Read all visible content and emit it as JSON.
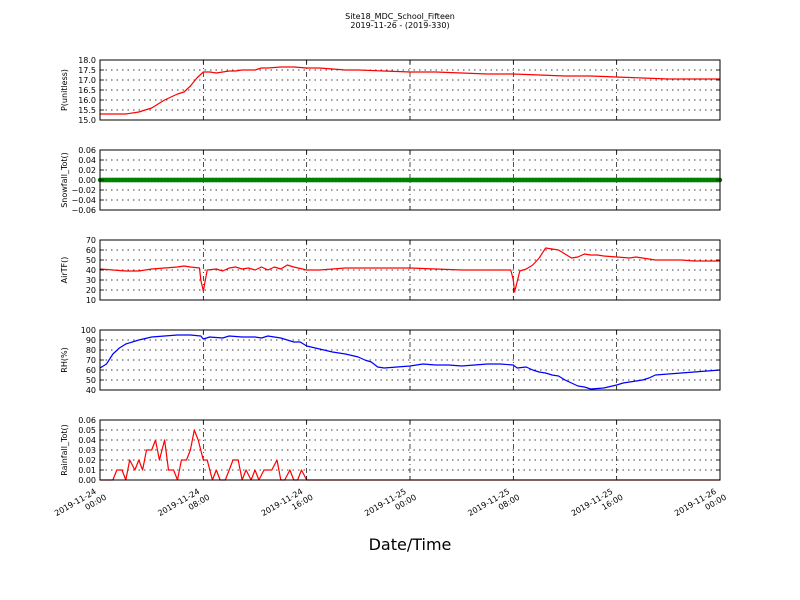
{
  "figure": {
    "title": "Site18_MDC_School_Fifteen",
    "subtitle": "2019-11-26 - (2019-330)",
    "xlabel": "Date/Time"
  },
  "chart_data": {
    "type": "line",
    "x_ticks": [
      {
        "t": 0,
        "label": [
          "2019-11-24",
          "00:00"
        ]
      },
      {
        "t": 8,
        "label": [
          "2019-11-24",
          "08:00"
        ]
      },
      {
        "t": 16,
        "label": [
          "2019-11-24",
          "16:00"
        ]
      },
      {
        "t": 24,
        "label": [
          "2019-11-25",
          "00:00"
        ]
      },
      {
        "t": 32,
        "label": [
          "2019-11-25",
          "08:00"
        ]
      },
      {
        "t": 40,
        "label": [
          "2019-11-25",
          "16:00"
        ]
      },
      {
        "t": 48,
        "label": [
          "2019-11-26",
          "00:00"
        ]
      }
    ],
    "xlim": [
      0,
      48
    ],
    "panels": [
      {
        "ylabel": "P(unitless)",
        "ylim": [
          15.0,
          18.0
        ],
        "yticks": [
          "15.0",
          "15.5",
          "16.0",
          "16.5",
          "17.0",
          "17.5",
          "18.0"
        ],
        "ytick_values": [
          15.0,
          15.5,
          16.0,
          16.5,
          17.0,
          17.5,
          18.0
        ],
        "color": "#ff0000",
        "markers": false,
        "points": [
          [
            0,
            15.3
          ],
          [
            1,
            15.3
          ],
          [
            2,
            15.3
          ],
          [
            3,
            15.4
          ],
          [
            3.5,
            15.5
          ],
          [
            4,
            15.6
          ],
          [
            4.5,
            15.8
          ],
          [
            5,
            16.0
          ],
          [
            5.5,
            16.15
          ],
          [
            6,
            16.3
          ],
          [
            6.5,
            16.4
          ],
          [
            7,
            16.7
          ],
          [
            7.5,
            17.1
          ],
          [
            8,
            17.4
          ],
          [
            8.5,
            17.4
          ],
          [
            9,
            17.35
          ],
          [
            9.5,
            17.4
          ],
          [
            10,
            17.45
          ],
          [
            10.5,
            17.45
          ],
          [
            11,
            17.5
          ],
          [
            11.5,
            17.5
          ],
          [
            12,
            17.5
          ],
          [
            12.5,
            17.6
          ],
          [
            13,
            17.6
          ],
          [
            14,
            17.65
          ],
          [
            15,
            17.65
          ],
          [
            16,
            17.6
          ],
          [
            17,
            17.6
          ],
          [
            18,
            17.55
          ],
          [
            19,
            17.5
          ],
          [
            20,
            17.5
          ],
          [
            22,
            17.45
          ],
          [
            24,
            17.4
          ],
          [
            26,
            17.4
          ],
          [
            28,
            17.35
          ],
          [
            30,
            17.3
          ],
          [
            32,
            17.3
          ],
          [
            34,
            17.25
          ],
          [
            36,
            17.2
          ],
          [
            38,
            17.2
          ],
          [
            40,
            17.15
          ],
          [
            42,
            17.1
          ],
          [
            44,
            17.05
          ],
          [
            46,
            17.05
          ],
          [
            48,
            17.05
          ]
        ]
      },
      {
        "ylabel": "Snowfall_Tot()",
        "ylim": [
          -0.06,
          0.06
        ],
        "yticks": [
          "−0.06",
          "−0.04",
          "−0.02",
          "0.00",
          "0.02",
          "0.04",
          "0.06"
        ],
        "ytick_values": [
          -0.06,
          -0.04,
          -0.02,
          0,
          0.02,
          0.04,
          0.06
        ],
        "color": "#008000",
        "markers": true,
        "points": [
          [
            0,
            0
          ],
          [
            48,
            0
          ]
        ]
      },
      {
        "ylabel": "AirTF()",
        "ylim": [
          10,
          70
        ],
        "yticks": [
          "10",
          "20",
          "30",
          "40",
          "50",
          "60",
          "70"
        ],
        "ytick_values": [
          10,
          20,
          30,
          40,
          50,
          60,
          70
        ],
        "color": "#ff0000",
        "markers": false,
        "points": [
          [
            0,
            41
          ],
          [
            1,
            40
          ],
          [
            2,
            39
          ],
          [
            3,
            39
          ],
          [
            4,
            41
          ],
          [
            5,
            42
          ],
          [
            6,
            43
          ],
          [
            6.5,
            44
          ],
          [
            7,
            43
          ],
          [
            7.7,
            42
          ],
          [
            7.8,
            30
          ],
          [
            8,
            19
          ],
          [
            8.3,
            40
          ],
          [
            9,
            41
          ],
          [
            9.5,
            39
          ],
          [
            10,
            42
          ],
          [
            10.5,
            43
          ],
          [
            11,
            41
          ],
          [
            11.5,
            42
          ],
          [
            12,
            40
          ],
          [
            12.5,
            43
          ],
          [
            13,
            40
          ],
          [
            13.5,
            43
          ],
          [
            14,
            41
          ],
          [
            14.5,
            45
          ],
          [
            15,
            43
          ],
          [
            16,
            40
          ],
          [
            17,
            40
          ],
          [
            18,
            41
          ],
          [
            19,
            42
          ],
          [
            20,
            42
          ],
          [
            22,
            42
          ],
          [
            24,
            42
          ],
          [
            26,
            41
          ],
          [
            28,
            40
          ],
          [
            30,
            40
          ],
          [
            31.8,
            40
          ],
          [
            32,
            30
          ],
          [
            32.1,
            18
          ],
          [
            32.5,
            39
          ],
          [
            33,
            41
          ],
          [
            33.5,
            45
          ],
          [
            34,
            52
          ],
          [
            34.5,
            62
          ],
          [
            35,
            61
          ],
          [
            35.5,
            60
          ],
          [
            36,
            56
          ],
          [
            36.5,
            52
          ],
          [
            37,
            53
          ],
          [
            37.5,
            56
          ],
          [
            38,
            55
          ],
          [
            38.5,
            55
          ],
          [
            39,
            54
          ],
          [
            40,
            53
          ],
          [
            41,
            52
          ],
          [
            41.5,
            53
          ],
          [
            42,
            52
          ],
          [
            42.5,
            51
          ],
          [
            43,
            50
          ],
          [
            44,
            50
          ],
          [
            45,
            50
          ],
          [
            46,
            49
          ],
          [
            47,
            49
          ],
          [
            48,
            49
          ]
        ]
      },
      {
        "ylabel": "RH(%)",
        "ylim": [
          40,
          100
        ],
        "yticks": [
          "40",
          "50",
          "60",
          "70",
          "80",
          "90",
          "100"
        ],
        "ytick_values": [
          40,
          50,
          60,
          70,
          80,
          90,
          100
        ],
        "color": "#0000ff",
        "markers": false,
        "points": [
          [
            0,
            62
          ],
          [
            0.5,
            66
          ],
          [
            1,
            76
          ],
          [
            1.5,
            82
          ],
          [
            2,
            86
          ],
          [
            3,
            90
          ],
          [
            4,
            93
          ],
          [
            5,
            94
          ],
          [
            6,
            95
          ],
          [
            7,
            95
          ],
          [
            7.8,
            94
          ],
          [
            8,
            91
          ],
          [
            8.5,
            93
          ],
          [
            9.5,
            92
          ],
          [
            10,
            94
          ],
          [
            11,
            93
          ],
          [
            12,
            93
          ],
          [
            12.5,
            92
          ],
          [
            13,
            94
          ],
          [
            14,
            92
          ],
          [
            15,
            88
          ],
          [
            15.5,
            88
          ],
          [
            16,
            84
          ],
          [
            17,
            81
          ],
          [
            18,
            78
          ],
          [
            19,
            76
          ],
          [
            20,
            73
          ],
          [
            20.5,
            70
          ],
          [
            21,
            68
          ],
          [
            21.5,
            63
          ],
          [
            22,
            62
          ],
          [
            23,
            63
          ],
          [
            24,
            64
          ],
          [
            25,
            66
          ],
          [
            26,
            65
          ],
          [
            27,
            65
          ],
          [
            28,
            64
          ],
          [
            29,
            65
          ],
          [
            30,
            66
          ],
          [
            31,
            66
          ],
          [
            32,
            65
          ],
          [
            32.3,
            62
          ],
          [
            33,
            63
          ],
          [
            33.5,
            60
          ],
          [
            34,
            58
          ],
          [
            34.5,
            57
          ],
          [
            35,
            55
          ],
          [
            35.5,
            54
          ],
          [
            36,
            50
          ],
          [
            36.5,
            47
          ],
          [
            37,
            44
          ],
          [
            37.5,
            43
          ],
          [
            38,
            41
          ],
          [
            39,
            42
          ],
          [
            40,
            45
          ],
          [
            40.5,
            47
          ],
          [
            41,
            48
          ],
          [
            41.5,
            49
          ],
          [
            42,
            50
          ],
          [
            42.5,
            52
          ],
          [
            43,
            55
          ],
          [
            44,
            56
          ],
          [
            45,
            57
          ],
          [
            46,
            58
          ],
          [
            47,
            59
          ],
          [
            48,
            60
          ]
        ]
      },
      {
        "ylabel": "Rainfall_Tot()",
        "ylim": [
          0.0,
          0.06
        ],
        "yticks": [
          "0.00",
          "0.01",
          "0.02",
          "0.03",
          "0.04",
          "0.05",
          "0.06"
        ],
        "ytick_values": [
          0,
          0.01,
          0.02,
          0.03,
          0.04,
          0.05,
          0.06
        ],
        "color": "#ff0000",
        "markers": false,
        "points": [
          [
            0,
            0
          ],
          [
            1,
            0
          ],
          [
            1.3,
            0.01
          ],
          [
            1.7,
            0.01
          ],
          [
            2,
            0
          ],
          [
            2.3,
            0.02
          ],
          [
            2.7,
            0.01
          ],
          [
            3,
            0.02
          ],
          [
            3.3,
            0.01
          ],
          [
            3.6,
            0.03
          ],
          [
            4,
            0.03
          ],
          [
            4.3,
            0.04
          ],
          [
            4.6,
            0.02
          ],
          [
            5,
            0.04
          ],
          [
            5.3,
            0.01
          ],
          [
            5.7,
            0.01
          ],
          [
            6,
            0
          ],
          [
            6.3,
            0.02
          ],
          [
            6.7,
            0.02
          ],
          [
            7,
            0.03
          ],
          [
            7.3,
            0.05
          ],
          [
            7.6,
            0.04
          ],
          [
            8,
            0.02
          ],
          [
            8.3,
            0.02
          ],
          [
            8.7,
            0
          ],
          [
            9,
            0.01
          ],
          [
            9.3,
            0
          ],
          [
            9.7,
            0
          ],
          [
            10,
            0.01
          ],
          [
            10.3,
            0.02
          ],
          [
            10.7,
            0.02
          ],
          [
            11,
            0
          ],
          [
            11.3,
            0.01
          ],
          [
            11.7,
            0
          ],
          [
            12,
            0.01
          ],
          [
            12.3,
            0
          ],
          [
            12.7,
            0.01
          ],
          [
            13,
            0.01
          ],
          [
            13.3,
            0.01
          ],
          [
            13.7,
            0.02
          ],
          [
            14,
            0
          ],
          [
            14.3,
            0
          ],
          [
            14.7,
            0.01
          ],
          [
            15,
            0
          ],
          [
            15.3,
            0
          ],
          [
            15.6,
            0.01
          ],
          [
            16,
            0
          ],
          [
            48,
            0
          ]
        ]
      }
    ]
  }
}
